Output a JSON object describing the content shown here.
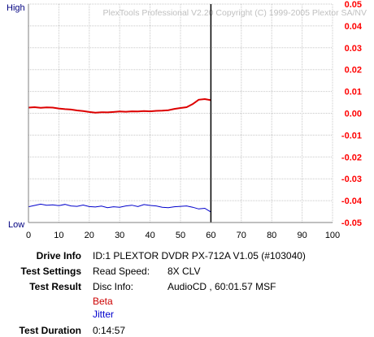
{
  "chart_data": {
    "type": "line",
    "watermark": "PlexTools Professional V2.20 Copyright (C) 1999-2005 Plextor SA/NV",
    "left_axis": {
      "top_label": "High",
      "bottom_label": "Low"
    },
    "x_ticks": [
      "0",
      "10",
      "20",
      "30",
      "40",
      "50",
      "60",
      "70",
      "80",
      "90",
      "100"
    ],
    "xlim": [
      0,
      100
    ],
    "y_right": {
      "ylim": [
        -0.05,
        0.05
      ],
      "ticks": [
        "0.05",
        "0.04",
        "0.03",
        "0.02",
        "0.01",
        "0.00",
        "-0.01",
        "-0.02",
        "-0.03",
        "-0.04",
        "-0.05"
      ],
      "color": "#ff0000"
    },
    "grid": true,
    "end_marker_x": 60,
    "series": [
      {
        "name": "Beta",
        "color": "#dd0000",
        "axis": "right",
        "x": [
          0,
          2,
          4,
          6,
          8,
          10,
          12,
          14,
          16,
          18,
          20,
          22,
          24,
          26,
          28,
          30,
          32,
          34,
          36,
          38,
          40,
          42,
          44,
          46,
          48,
          50,
          52,
          54,
          56,
          58,
          60
        ],
        "y": [
          0.0026,
          0.0028,
          0.0025,
          0.0027,
          0.0026,
          0.0022,
          0.0019,
          0.0017,
          0.0013,
          0.001,
          0.0006,
          0.0003,
          0.0005,
          0.0004,
          0.0006,
          0.0008,
          0.0007,
          0.0009,
          0.0008,
          0.001,
          0.0009,
          0.0011,
          0.0012,
          0.0014,
          0.002,
          0.0024,
          0.0028,
          0.0042,
          0.0062,
          0.0065,
          0.006
        ]
      },
      {
        "name": "Jitter",
        "color": "#0000cc",
        "axis": "left",
        "x": [
          0,
          2,
          4,
          6,
          8,
          10,
          12,
          14,
          16,
          18,
          20,
          22,
          24,
          26,
          28,
          30,
          32,
          34,
          36,
          38,
          40,
          42,
          44,
          46,
          48,
          50,
          52,
          54,
          56,
          58,
          60
        ],
        "y": [
          0.072,
          0.078,
          0.084,
          0.079,
          0.081,
          0.077,
          0.083,
          0.076,
          0.074,
          0.08,
          0.073,
          0.071,
          0.075,
          0.068,
          0.072,
          0.07,
          0.076,
          0.079,
          0.073,
          0.082,
          0.078,
          0.076,
          0.07,
          0.068,
          0.072,
          0.074,
          0.076,
          0.07,
          0.062,
          0.065,
          0.048
        ]
      }
    ]
  },
  "info": {
    "drive_label": "Drive Info",
    "drive_value": "ID:1 PLEXTOR DVDR PX-712A V1.05 (#103040)",
    "settings_label": "Test Settings",
    "settings_key": "Read Speed:",
    "settings_value": "8X CLV",
    "result_label": "Test Result",
    "result_key": "Disc Info:",
    "result_value": "AudioCD , 60:01.57 MSF",
    "legend_beta": "Beta",
    "legend_jitter": "Jitter",
    "duration_label": "Test Duration",
    "duration_value": "0:14:57"
  }
}
